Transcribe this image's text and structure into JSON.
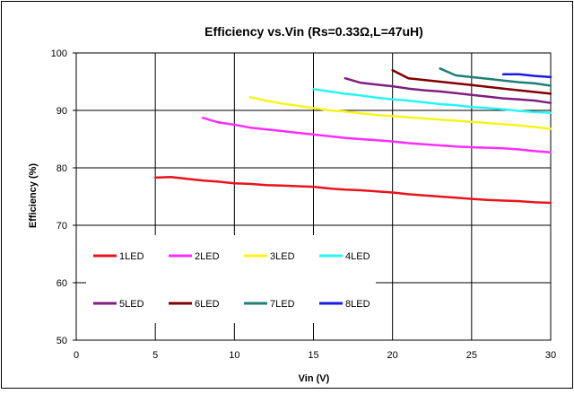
{
  "chart_data": {
    "type": "line",
    "title": "Efficiency vs.Vin (Rs=0.33Ω,L=47uH)",
    "xlabel": "Vin (V)",
    "ylabel": "Efficiency (%)",
    "xlim": [
      0,
      30
    ],
    "ylim": [
      50,
      100
    ],
    "xticks": [
      0,
      5,
      10,
      15,
      20,
      25,
      30
    ],
    "yticks": [
      50,
      60,
      70,
      80,
      90,
      100
    ],
    "grid": true,
    "legend_position": "inside-bottom-left",
    "series": [
      {
        "name": "1LED",
        "color": "#e8141c",
        "x": [
          5,
          6,
          7,
          8,
          9,
          10,
          11,
          12,
          13,
          14,
          15,
          16,
          17,
          18,
          19,
          20,
          21,
          22,
          23,
          24,
          25,
          26,
          27,
          28,
          29,
          30
        ],
        "y": [
          78.3,
          78.4,
          78.1,
          77.8,
          77.6,
          77.3,
          77.2,
          77.0,
          76.9,
          76.8,
          76.7,
          76.4,
          76.2,
          76.1,
          75.9,
          75.7,
          75.4,
          75.2,
          75.0,
          74.8,
          74.6,
          74.4,
          74.3,
          74.2,
          74.0,
          73.9
        ]
      },
      {
        "name": "2LED",
        "color": "#ff2dff",
        "x": [
          8,
          9,
          10,
          11,
          12,
          13,
          14,
          15,
          16,
          17,
          18,
          19,
          20,
          21,
          22,
          23,
          24,
          25,
          26,
          27,
          28,
          29,
          30
        ],
        "y": [
          88.7,
          87.9,
          87.5,
          87.0,
          86.7,
          86.4,
          86.1,
          85.8,
          85.5,
          85.2,
          85.0,
          84.8,
          84.6,
          84.3,
          84.1,
          83.9,
          83.7,
          83.6,
          83.5,
          83.4,
          83.2,
          82.9,
          82.7
        ]
      },
      {
        "name": "3LED",
        "color": "#f5f51a",
        "x": [
          11,
          12,
          13,
          14,
          15,
          16,
          17,
          18,
          19,
          20,
          21,
          22,
          23,
          24,
          25,
          26,
          27,
          28,
          29,
          30
        ],
        "y": [
          92.3,
          91.7,
          91.2,
          90.8,
          90.4,
          90.0,
          89.8,
          89.5,
          89.2,
          89.0,
          88.8,
          88.6,
          88.4,
          88.2,
          88.0,
          87.8,
          87.6,
          87.4,
          87.1,
          86.8
        ]
      },
      {
        "name": "4LED",
        "color": "#26f5f5",
        "x": [
          15,
          16,
          17,
          18,
          19,
          20,
          21,
          22,
          23,
          24,
          25,
          26,
          27,
          28,
          29,
          30
        ],
        "y": [
          93.7,
          93.3,
          92.9,
          92.6,
          92.2,
          91.9,
          91.7,
          91.4,
          91.1,
          90.9,
          90.6,
          90.4,
          90.2,
          89.9,
          89.7,
          89.6
        ]
      },
      {
        "name": "5LED",
        "color": "#7f1f7f",
        "x": [
          17,
          18,
          19,
          20,
          21,
          22,
          23,
          24,
          25,
          26,
          27,
          28,
          29,
          30
        ],
        "y": [
          95.6,
          94.8,
          94.5,
          94.2,
          93.8,
          93.5,
          93.3,
          93.0,
          92.7,
          92.4,
          92.1,
          91.9,
          91.7,
          91.3
        ]
      },
      {
        "name": "6LED",
        "color": "#800000",
        "x": [
          20,
          21,
          22,
          23,
          24,
          25,
          26,
          27,
          28,
          29,
          30
        ],
        "y": [
          97.0,
          95.6,
          95.3,
          95.0,
          94.7,
          94.4,
          94.1,
          93.8,
          93.5,
          93.2,
          92.9
        ]
      },
      {
        "name": "7LED",
        "color": "#1f7f78",
        "x": [
          23,
          24,
          25,
          26,
          27,
          28,
          29,
          30
        ],
        "y": [
          97.3,
          96.1,
          95.8,
          95.5,
          95.2,
          94.9,
          94.7,
          94.3
        ]
      },
      {
        "name": "8LED",
        "color": "#1a1ae6",
        "x": [
          27,
          28,
          29,
          30
        ],
        "y": [
          96.3,
          96.3,
          96.0,
          95.8
        ]
      }
    ]
  }
}
